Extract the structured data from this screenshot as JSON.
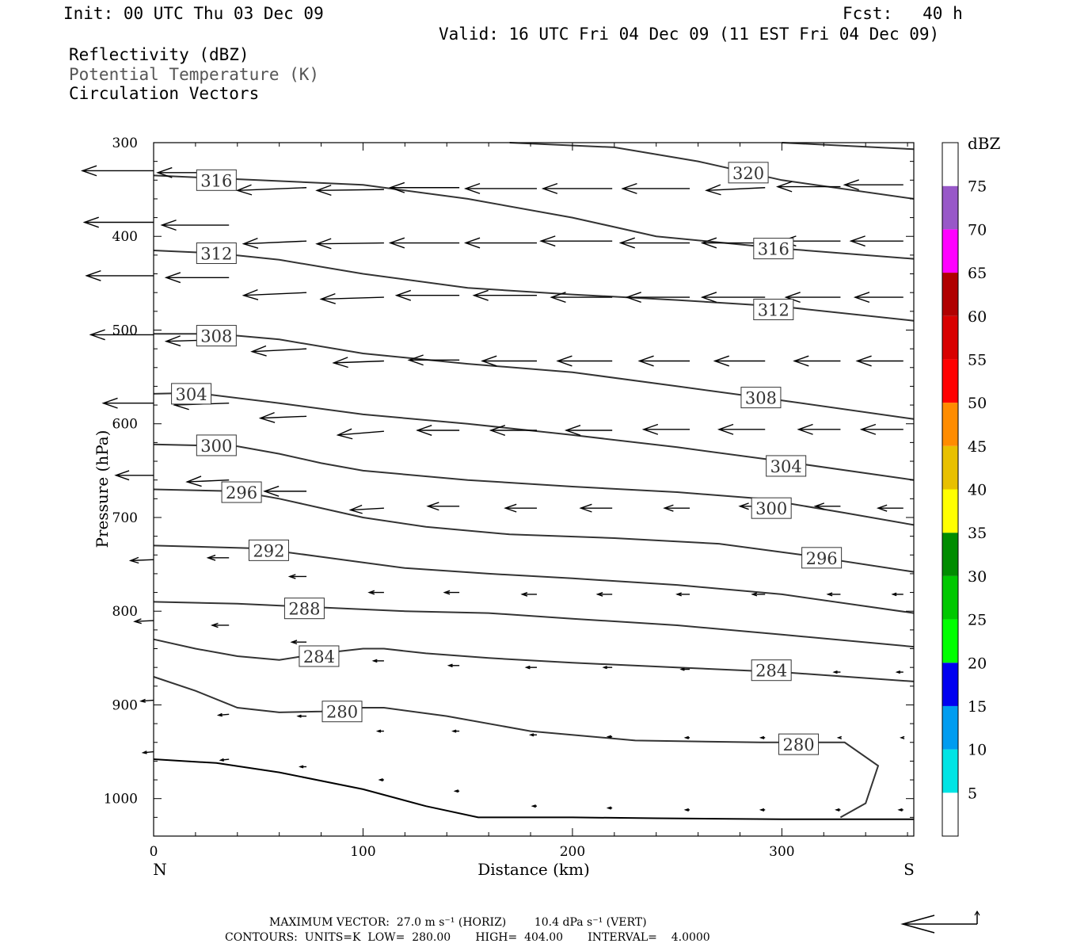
{
  "header": {
    "init": "Init: 00 UTC Thu 03 Dec 09",
    "fcst": "Fcst:   40 h",
    "valid": "Valid: 16 UTC Fri 04 Dec 09 (11 EST Fri 04 Dec 09)",
    "field1": "Reflectivity (dBZ)",
    "field2": "Potential Temperature (K)",
    "field3": "Circulation Vectors"
  },
  "footer": {
    "line1": "MAXIMUM VECTOR:  27.0 m s⁻¹ (HORIZ)        10.4 dPa s⁻¹ (VERT)",
    "line2": "CONTOURS:  UNITS=K  LOW=  280.00       HIGH=  404.00       INTERVAL=    4.0000"
  },
  "colors": {
    "contour": "#333333",
    "vector": "#000000"
  },
  "chart_data": {
    "type": "line",
    "xlabel": "Distance (km)",
    "ylabel": "Pressure (hPa)",
    "xlim": [
      0,
      363
    ],
    "ylim": [
      1040,
      300
    ],
    "y_scale": "linear",
    "grid": false,
    "x_ticks": [
      0,
      100,
      200,
      300
    ],
    "y_ticks": [
      300,
      400,
      500,
      600,
      700,
      800,
      900,
      1000
    ],
    "x_end_labels": {
      "left": "N",
      "right": "S"
    },
    "colorbar": {
      "title": "dBZ",
      "levels": [
        5,
        10,
        15,
        20,
        25,
        30,
        35,
        40,
        45,
        50,
        55,
        60,
        65,
        70,
        75
      ],
      "colors": [
        "#ffffff",
        "#00e4e4",
        "#009cf0",
        "#0000f0",
        "#00ff00",
        "#00c800",
        "#008c00",
        "#ffff00",
        "#e8c000",
        "#ff8c00",
        "#ff0000",
        "#d80000",
        "#b00000",
        "#ff00ff",
        "#9858c8",
        "#ffffff"
      ]
    },
    "series": [
      {
        "label": "280",
        "points": [
          [
            0,
            870
          ],
          [
            20,
            885
          ],
          [
            40,
            903
          ],
          [
            60,
            908
          ],
          [
            80,
            907
          ],
          [
            100,
            903
          ],
          [
            110,
            903
          ],
          [
            140,
            912
          ],
          [
            180,
            928
          ],
          [
            230,
            938
          ],
          [
            290,
            940
          ],
          [
            330,
            940
          ],
          [
            346,
            965
          ],
          [
            340,
            1005
          ],
          [
            328,
            1020
          ]
        ],
        "labels": [
          [
            90,
            907
          ],
          [
            308,
            942
          ]
        ]
      },
      {
        "label": "284",
        "points": [
          [
            0,
            830
          ],
          [
            20,
            840
          ],
          [
            40,
            848
          ],
          [
            60,
            852
          ],
          [
            80,
            845
          ],
          [
            100,
            840
          ],
          [
            110,
            840
          ],
          [
            130,
            845
          ],
          [
            160,
            850
          ],
          [
            200,
            855
          ],
          [
            250,
            860
          ],
          [
            300,
            865
          ],
          [
            363,
            875
          ]
        ],
        "labels": [
          [
            79,
            848
          ],
          [
            295,
            863
          ]
        ]
      },
      {
        "label": "288",
        "points": [
          [
            0,
            790
          ],
          [
            40,
            792
          ],
          [
            80,
            796
          ],
          [
            120,
            800
          ],
          [
            160,
            802
          ],
          [
            200,
            808
          ],
          [
            250,
            815
          ],
          [
            300,
            825
          ],
          [
            363,
            838
          ]
        ],
        "labels": [
          [
            72,
            797
          ]
        ]
      },
      {
        "label": "292",
        "points": [
          [
            0,
            730
          ],
          [
            50,
            733
          ],
          [
            80,
            742
          ],
          [
            100,
            748
          ],
          [
            120,
            754
          ],
          [
            160,
            760
          ],
          [
            200,
            765
          ],
          [
            250,
            772
          ],
          [
            300,
            782
          ],
          [
            363,
            802
          ]
        ],
        "labels": [
          [
            55,
            735
          ]
        ]
      },
      {
        "label": "296",
        "points": [
          [
            0,
            670
          ],
          [
            40,
            672
          ],
          [
            60,
            680
          ],
          [
            80,
            690
          ],
          [
            100,
            700
          ],
          [
            130,
            710
          ],
          [
            170,
            718
          ],
          [
            220,
            722
          ],
          [
            270,
            728
          ],
          [
            310,
            740
          ],
          [
            363,
            758
          ]
        ],
        "labels": [
          [
            42,
            673
          ],
          [
            319,
            743
          ]
        ]
      },
      {
        "label": "300",
        "points": [
          [
            0,
            622
          ],
          [
            40,
            624
          ],
          [
            60,
            632
          ],
          [
            80,
            642
          ],
          [
            100,
            650
          ],
          [
            150,
            660
          ],
          [
            200,
            667
          ],
          [
            250,
            673
          ],
          [
            290,
            680
          ],
          [
            330,
            695
          ],
          [
            363,
            708
          ]
        ],
        "labels": [
          [
            30,
            623
          ],
          [
            295,
            690
          ]
        ]
      },
      {
        "label": "304",
        "points": [
          [
            0,
            568
          ],
          [
            20,
            567
          ],
          [
            60,
            578
          ],
          [
            100,
            590
          ],
          [
            150,
            600
          ],
          [
            200,
            612
          ],
          [
            250,
            625
          ],
          [
            300,
            640
          ],
          [
            363,
            660
          ]
        ],
        "labels": [
          [
            18,
            568
          ],
          [
            302,
            645
          ]
        ]
      },
      {
        "label": "308",
        "points": [
          [
            0,
            504
          ],
          [
            30,
            504
          ],
          [
            60,
            510
          ],
          [
            100,
            525
          ],
          [
            150,
            536
          ],
          [
            200,
            545
          ],
          [
            250,
            560
          ],
          [
            300,
            575
          ],
          [
            363,
            595
          ]
        ],
        "labels": [
          [
            30,
            506
          ],
          [
            290,
            572
          ]
        ]
      },
      {
        "label": "312",
        "points": [
          [
            0,
            415
          ],
          [
            30,
            418
          ],
          [
            60,
            425
          ],
          [
            100,
            440
          ],
          [
            150,
            455
          ],
          [
            200,
            462
          ],
          [
            250,
            468
          ],
          [
            300,
            475
          ],
          [
            363,
            490
          ]
        ],
        "labels": [
          [
            30,
            418
          ],
          [
            296,
            478
          ]
        ]
      },
      {
        "label": "316",
        "points": [
          [
            0,
            335
          ],
          [
            50,
            340
          ],
          [
            100,
            345
          ],
          [
            150,
            360
          ],
          [
            200,
            380
          ],
          [
            240,
            400
          ],
          [
            300,
            413
          ],
          [
            363,
            424
          ]
        ],
        "labels": [
          [
            30,
            340
          ],
          [
            296,
            413
          ]
        ]
      },
      {
        "label": "320",
        "points": [
          [
            170,
            300
          ],
          [
            220,
            305
          ],
          [
            260,
            320
          ],
          [
            300,
            340
          ],
          [
            363,
            360
          ]
        ],
        "labels": [
          [
            284,
            332
          ]
        ]
      },
      {
        "label": "",
        "points": [
          [
            300,
            300
          ],
          [
            363,
            307
          ]
        ],
        "labels": []
      }
    ],
    "terrain": [
      [
        0,
        958
      ],
      [
        30,
        962
      ],
      [
        60,
        972
      ],
      [
        100,
        990
      ],
      [
        130,
        1008
      ],
      [
        155,
        1020
      ],
      [
        200,
        1020
      ],
      [
        240,
        1021
      ],
      [
        300,
        1022
      ],
      [
        363,
        1022
      ]
    ],
    "vector_reference": {
      "horiz_ms": 27.0,
      "vert_dpa_s": 10.4
    },
    "vectors": [
      [
        0,
        330,
        -34,
        0
      ],
      [
        36,
        332,
        -34,
        0
      ],
      [
        73,
        348,
        -33,
        3
      ],
      [
        110,
        350,
        -32,
        1
      ],
      [
        146,
        348,
        -33,
        0
      ],
      [
        183,
        349,
        -34,
        0
      ],
      [
        219,
        349,
        -33,
        0
      ],
      [
        256,
        349,
        -32,
        0
      ],
      [
        292,
        348,
        -28,
        3
      ],
      [
        328,
        347,
        -30,
        0
      ],
      [
        358,
        345,
        -28,
        0
      ],
      [
        0,
        385,
        -33,
        0
      ],
      [
        36,
        388,
        -32,
        0
      ],
      [
        73,
        405,
        -30,
        3
      ],
      [
        110,
        407,
        -32,
        1
      ],
      [
        146,
        407,
        -33,
        0
      ],
      [
        183,
        407,
        -34,
        0
      ],
      [
        219,
        405,
        -34,
        0
      ],
      [
        256,
        407,
        -33,
        0
      ],
      [
        292,
        407,
        -30,
        0
      ],
      [
        328,
        405,
        -28,
        0
      ],
      [
        358,
        405,
        -25,
        0
      ],
      [
        0,
        442,
        -32,
        0
      ],
      [
        36,
        444,
        -30,
        0
      ],
      [
        73,
        460,
        -30,
        3
      ],
      [
        110,
        465,
        -30,
        2
      ],
      [
        146,
        463,
        -30,
        0
      ],
      [
        183,
        463,
        -30,
        0
      ],
      [
        219,
        465,
        -29,
        0
      ],
      [
        256,
        465,
        -30,
        0
      ],
      [
        292,
        465,
        -30,
        0
      ],
      [
        328,
        465,
        -26,
        0
      ],
      [
        358,
        465,
        -23,
        0
      ],
      [
        0,
        505,
        -30,
        0
      ],
      [
        36,
        510,
        -30,
        2
      ],
      [
        73,
        520,
        -26,
        3
      ],
      [
        110,
        533,
        -24,
        2
      ],
      [
        146,
        532,
        -24,
        0
      ],
      [
        183,
        533,
        -26,
        0
      ],
      [
        219,
        533,
        -26,
        0
      ],
      [
        256,
        533,
        -24,
        0
      ],
      [
        292,
        533,
        -24,
        0
      ],
      [
        328,
        533,
        -22,
        0
      ],
      [
        358,
        533,
        -22,
        0
      ],
      [
        0,
        578,
        -24,
        0
      ],
      [
        36,
        578,
        -26,
        2
      ],
      [
        73,
        592,
        -22,
        2
      ],
      [
        110,
        608,
        -22,
        4
      ],
      [
        146,
        607,
        -20,
        0
      ],
      [
        183,
        607,
        -22,
        0
      ],
      [
        219,
        607,
        -22,
        0
      ],
      [
        256,
        606,
        -22,
        0
      ],
      [
        292,
        606,
        -22,
        0
      ],
      [
        328,
        606,
        -20,
        0
      ],
      [
        358,
        606,
        -20,
        0
      ],
      [
        0,
        655,
        -18,
        0
      ],
      [
        36,
        660,
        -20,
        2
      ],
      [
        73,
        672,
        -20,
        0
      ],
      [
        110,
        690,
        -16,
        2
      ],
      [
        146,
        688,
        -15,
        0
      ],
      [
        183,
        690,
        -15,
        0
      ],
      [
        219,
        690,
        -15,
        0
      ],
      [
        256,
        690,
        -12,
        0
      ],
      [
        292,
        688,
        -12,
        0
      ],
      [
        328,
        688,
        -12,
        0
      ],
      [
        358,
        690,
        -12,
        0
      ],
      [
        0,
        745,
        -11,
        1
      ],
      [
        36,
        743,
        -10,
        0
      ],
      [
        73,
        763,
        -8,
        0
      ],
      [
        110,
        780,
        -7,
        0
      ],
      [
        146,
        780,
        -7,
        0
      ],
      [
        183,
        782,
        -7,
        0
      ],
      [
        219,
        782,
        -7,
        0
      ],
      [
        256,
        782,
        -6,
        0
      ],
      [
        292,
        782,
        -6,
        0
      ],
      [
        328,
        782,
        -6,
        0
      ],
      [
        358,
        782,
        -5,
        0
      ],
      [
        0,
        810,
        -9,
        1
      ],
      [
        36,
        815,
        -8,
        0
      ],
      [
        73,
        833,
        -7,
        0
      ],
      [
        110,
        853,
        -5,
        0
      ],
      [
        146,
        858,
        -5,
        0
      ],
      [
        183,
        860,
        -5,
        0
      ],
      [
        219,
        860,
        -4,
        0
      ],
      [
        256,
        862,
        -4,
        0
      ],
      [
        292,
        865,
        -4,
        0
      ],
      [
        328,
        865,
        -3,
        0
      ],
      [
        358,
        865,
        -3,
        0
      ],
      [
        0,
        895,
        -6,
        1
      ],
      [
        36,
        910,
        -5,
        1
      ],
      [
        73,
        912,
        -4,
        0
      ],
      [
        110,
        928,
        -3,
        0
      ],
      [
        146,
        928,
        -3,
        0
      ],
      [
        183,
        932,
        -3,
        0
      ],
      [
        219,
        934,
        -2,
        0
      ],
      [
        256,
        935,
        -2,
        0
      ],
      [
        292,
        935,
        -2,
        0
      ],
      [
        328,
        935,
        -1,
        0
      ],
      [
        358,
        935,
        -1,
        0
      ],
      [
        0,
        950,
        -5,
        1
      ],
      [
        36,
        958,
        -4,
        1
      ],
      [
        73,
        966,
        -3,
        0
      ],
      [
        110,
        980,
        -2,
        0
      ],
      [
        146,
        992,
        -2,
        0
      ],
      [
        183,
        1008,
        -2,
        0
      ],
      [
        219,
        1010,
        -2,
        0
      ],
      [
        256,
        1012,
        -2,
        0
      ],
      [
        292,
        1012,
        -2,
        0
      ],
      [
        328,
        1012,
        -2,
        0
      ],
      [
        358,
        1012,
        -2,
        0
      ]
    ]
  }
}
